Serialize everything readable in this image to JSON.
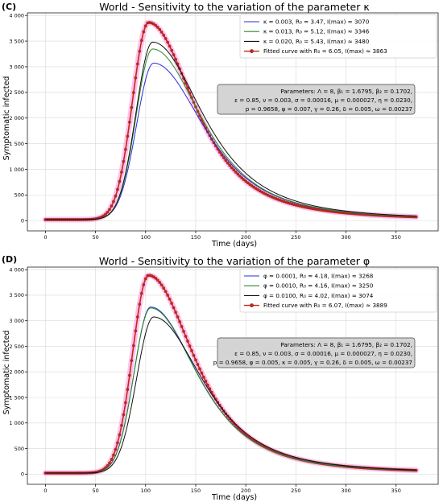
{
  "colors": {
    "blue": "#2b2bd6",
    "green": "#2a8a2a",
    "black": "#111111",
    "fitted": "#c0281c",
    "fitted_marker_edge": "#8a1a12",
    "param_box": "#d4d4d4"
  },
  "chart_data": [
    {
      "type": "line",
      "panel": "(C)",
      "title": "World - Sensitivity to the variation of the parameter κ",
      "xlabel": "Time (days)",
      "ylabel": "Symptomatic infected",
      "xlim": [
        -18,
        392
      ],
      "ylim": [
        -200,
        4050
      ],
      "xticks": [
        0,
        50,
        100,
        150,
        200,
        250,
        300,
        350
      ],
      "yticks": [
        0,
        500,
        1000,
        1500,
        2000,
        2500,
        3000,
        3500,
        4000
      ],
      "ytick_labels": [
        "0",
        "500",
        "1 000",
        "1 500",
        "2 000",
        "2 500",
        "3 000",
        "3 500",
        "4 000"
      ],
      "grid": true,
      "legend_position": "top-right",
      "series": [
        {
          "name": "κ = 0.003, R₀ = 3.47,  I(max) ≈ 3070",
          "color": "blue",
          "marker": false,
          "peak": 3070,
          "peak_day": 108,
          "rise": 17,
          "decay": 48,
          "start": 20,
          "end": 20
        },
        {
          "name": "κ = 0.013, R₀ = 5.12,  I(max) ≈ 3346",
          "color": "green",
          "marker": false,
          "peak": 3346,
          "peak_day": 107,
          "rise": 16.5,
          "decay": 47,
          "start": 20,
          "end": 20
        },
        {
          "name": "κ = 0.020, R₀ = 5.43,  I(max) ≈ 3480",
          "color": "black",
          "marker": false,
          "peak": 3480,
          "peak_day": 107,
          "rise": 16.5,
          "decay": 48,
          "start": 20,
          "end": 20
        },
        {
          "name": "Fitted curve with R₀ = 6.05, I(max) ≈ 3863",
          "color": "fitted",
          "marker": true,
          "peak": 3863,
          "peak_day": 103,
          "rise": 16,
          "decay": 43,
          "start": 20,
          "end": 20
        }
      ],
      "parameters": [
        "Parameters:  Λ =  8, β₁ = 1.6795, β₂ = 0.1702,",
        "ε = 0.85, ν =  0.003, σ = 0.00016, μ = 0.000027, η = 0.0230,",
        "p = 0.9658, φ = 0.007, γ = 0.26, δ = 0.005, ω = 0.00237"
      ]
    },
    {
      "type": "line",
      "panel": "(D)",
      "title": "World - Sensitivity to the variation of the parameter φ",
      "xlabel": "Time (days)",
      "ylabel": "Symptomatic infected",
      "xlim": [
        -18,
        392
      ],
      "ylim": [
        -200,
        4050
      ],
      "xticks": [
        0,
        50,
        100,
        150,
        200,
        250,
        300,
        350
      ],
      "yticks": [
        0,
        500,
        1000,
        1500,
        2000,
        2500,
        3000,
        3500,
        4000
      ],
      "ytick_labels": [
        "0",
        "500",
        "1 000",
        "1 500",
        "2 000",
        "2 500",
        "3 000",
        "3 500",
        "4 000"
      ],
      "grid": true,
      "legend_position": "top-right",
      "series": [
        {
          "name": "φ = 0.0001, R₀ = 4.18,  I(max) ≈ 3268",
          "color": "blue",
          "marker": false,
          "peak": 3268,
          "peak_day": 105,
          "rise": 16.5,
          "decay": 45,
          "start": 20,
          "end": 20
        },
        {
          "name": "φ = 0.0010, R₀ = 4.16,  I(max) ≈ 3250",
          "color": "green",
          "marker": false,
          "peak": 3250,
          "peak_day": 105,
          "rise": 16.5,
          "decay": 45,
          "start": 20,
          "end": 20
        },
        {
          "name": "φ = 0.0100, R₀ = 4.02,  I(max) ≈ 3074",
          "color": "black",
          "marker": false,
          "peak": 3074,
          "peak_day": 108,
          "rise": 17,
          "decay": 47,
          "start": 20,
          "end": 20
        },
        {
          "name": "Fitted curve with R₀ = 6.07, I(max) ≈ 3889",
          "color": "fitted",
          "marker": true,
          "peak": 3889,
          "peak_day": 103,
          "rise": 16,
          "decay": 43,
          "start": 20,
          "end": 20
        }
      ],
      "parameters": [
        "Parameters:  Λ =  8, β₁ = 1.6795, β₂ = 0.1702,",
        "ε = 0.85, ν =  0.003, σ = 0.00016, μ = 0.000027, η = 0.0230,",
        "p = 0.9658, φ = 0.005, κ = 0.005, γ = 0.26, δ = 0.005, ω = 0.00237"
      ]
    }
  ]
}
